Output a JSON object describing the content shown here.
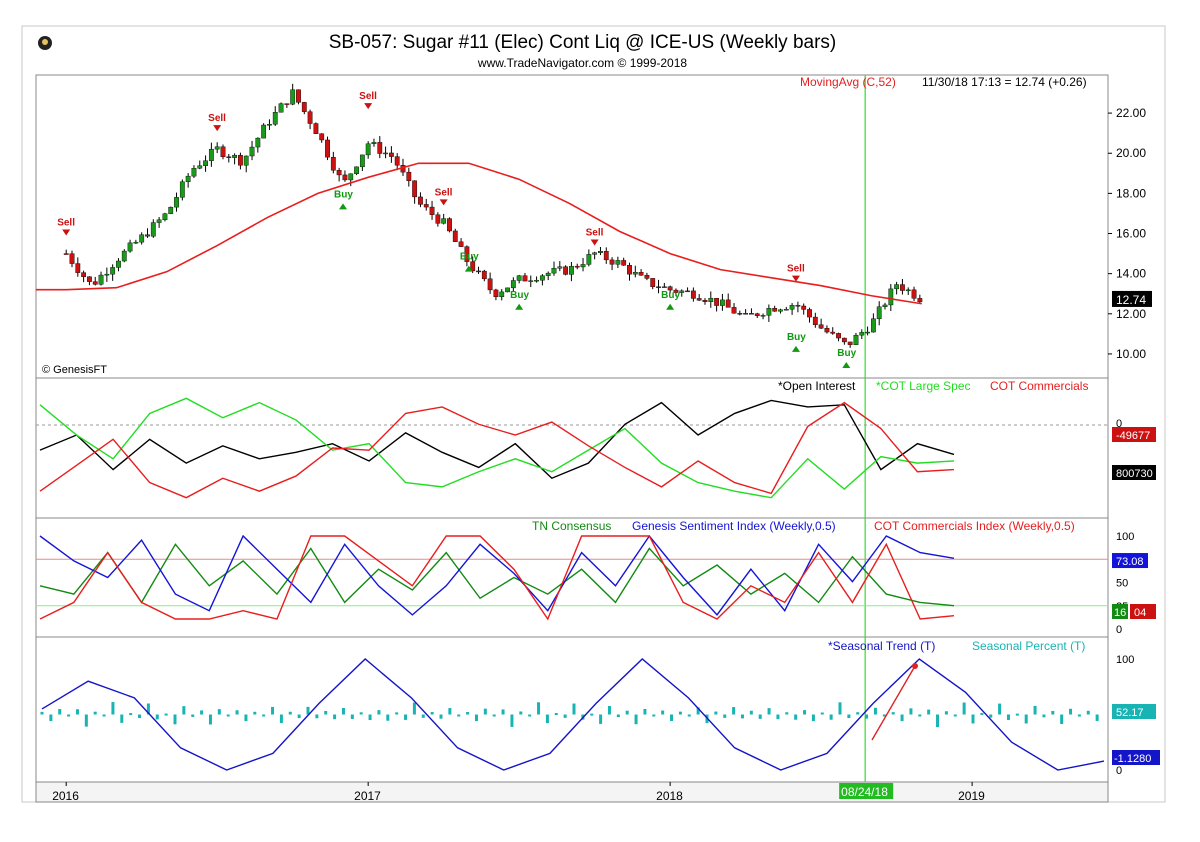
{
  "header": {
    "title": "SB-057:  Sugar #11 (Elec) Cont Liq @ ICE-US  (Weekly bars)",
    "subtitle": "www.TradeNavigator.com © 1999-2018",
    "logo_icon": "genesis-logo-icon",
    "copyright": "© GenesisFT"
  },
  "colors": {
    "background": "#ffffff",
    "frame": "#c8c8c8",
    "up_candle": "#1a9a1a",
    "down_candle": "#cc1111",
    "moving_avg": "#e81e1e",
    "cursor_line": "#33dd33",
    "open_interest": "#000000",
    "cot_large_spec": "#22dd22",
    "cot_commercials": "#e81e1e",
    "tn_consensus": "#138a13",
    "genesis_sentiment": "#1414d8",
    "seasonal_trend": "#1414c8",
    "seasonal_percent": "#18b4b4"
  },
  "x_axis": {
    "labels": [
      "2016",
      "2017",
      "2018",
      "2019"
    ],
    "cursor_date": "08/24/18"
  },
  "chart_data": [
    {
      "type": "candlestick",
      "panel": "price",
      "legend": "MovingAvg (C,52)",
      "readout": "11/30/18 17:13 = 12.74 (+0.26)",
      "last_value": "12.74",
      "ylim": [
        9.0,
        23.5
      ],
      "y_ticks": [
        "22.00",
        "20.00",
        "18.00",
        "16.00",
        "14.00",
        "12.00",
        "10.00"
      ],
      "series": [
        {
          "name": "Sugar #11 weekly close",
          "x": [
            "2016-01",
            "2016-02",
            "2016-03",
            "2016-04",
            "2016-05",
            "2016-06",
            "2016-07",
            "2016-08",
            "2016-09",
            "2016-10",
            "2016-11",
            "2016-12",
            "2017-01",
            "2017-02",
            "2017-03",
            "2017-04",
            "2017-05",
            "2017-06",
            "2017-07",
            "2017-08",
            "2017-09",
            "2017-10",
            "2017-11",
            "2017-12",
            "2018-01",
            "2018-02",
            "2018-03",
            "2018-04",
            "2018-05",
            "2018-06",
            "2018-07",
            "2018-08",
            "2018-09",
            "2018-10",
            "2018-11"
          ],
          "values": [
            15.0,
            13.4,
            14.7,
            15.8,
            17.0,
            19.2,
            20.2,
            19.6,
            21.5,
            23.0,
            21.0,
            18.4,
            20.5,
            19.8,
            17.5,
            16.5,
            14.5,
            13.0,
            13.7,
            14.0,
            14.2,
            15.0,
            14.5,
            13.6,
            13.2,
            13.0,
            12.5,
            11.8,
            12.3,
            12.5,
            11.3,
            10.4,
            11.5,
            13.5,
            12.74
          ]
        },
        {
          "name": "MovingAvg (C,52)",
          "x": [
            "2016-01",
            "2016-03",
            "2016-05",
            "2016-07",
            "2016-09",
            "2016-11",
            "2017-01",
            "2017-03",
            "2017-05",
            "2017-07",
            "2017-09",
            "2017-11",
            "2018-01",
            "2018-03",
            "2018-05",
            "2018-07",
            "2018-09",
            "2018-11"
          ],
          "values": [
            13.2,
            13.3,
            14.1,
            15.4,
            16.8,
            18.0,
            18.8,
            19.5,
            19.5,
            18.7,
            17.5,
            16.1,
            15.0,
            14.2,
            13.8,
            13.4,
            12.9,
            12.5
          ]
        }
      ],
      "annotations": [
        {
          "label": "Sell",
          "x": "2016-01",
          "y": 16.0
        },
        {
          "label": "Sell",
          "x": "2016-07",
          "y": 21.2
        },
        {
          "label": "Sell",
          "x": "2017-01",
          "y": 22.3
        },
        {
          "label": "Sell",
          "x": "2017-04",
          "y": 17.5
        },
        {
          "label": "Sell",
          "x": "2017-10",
          "y": 15.5
        },
        {
          "label": "Sell",
          "x": "2018-06",
          "y": 13.7
        },
        {
          "label": "Buy",
          "x": "2016-12",
          "y": 17.4
        },
        {
          "label": "Buy",
          "x": "2017-05",
          "y": 14.3
        },
        {
          "label": "Buy",
          "x": "2017-07",
          "y": 12.4
        },
        {
          "label": "Buy",
          "x": "2018-01",
          "y": 12.4
        },
        {
          "label": "Buy",
          "x": "2018-06",
          "y": 10.3
        },
        {
          "label": "Buy",
          "x": "2018-08",
          "y": 9.5
        }
      ]
    },
    {
      "type": "line",
      "panel": "cot",
      "y_ticks": [
        "0"
      ],
      "readouts": [
        "-49677",
        "800730"
      ],
      "series": [
        {
          "name": "*Open Interest",
          "values": [
            48,
            62,
            30,
            58,
            36,
            52,
            40,
            46,
            54,
            38,
            64,
            46,
            32,
            54,
            22,
            36,
            72,
            92,
            62,
            82,
            94,
            88,
            90,
            30,
            54,
            44
          ]
        },
        {
          "name": "*COT Large Spec",
          "values": [
            90,
            62,
            40,
            82,
            96,
            78,
            92,
            76,
            48,
            54,
            18,
            14,
            28,
            40,
            28,
            48,
            68,
            36,
            18,
            10,
            4,
            40,
            12,
            42,
            36,
            38
          ]
        },
        {
          "name": "COT Commercials",
          "values": [
            10,
            34,
            58,
            18,
            4,
            22,
            10,
            24,
            50,
            48,
            82,
            88,
            72,
            62,
            74,
            52,
            32,
            14,
            38,
            18,
            8,
            70,
            92,
            68,
            28,
            30
          ]
        }
      ]
    },
    {
      "type": "line",
      "panel": "sentiment",
      "ylim": [
        0,
        100
      ],
      "y_ticks": [
        "100",
        "50",
        "25",
        "0"
      ],
      "readouts": [
        "73.08",
        "16",
        "04"
      ],
      "series": [
        {
          "name": "TN Consensus",
          "values": [
            40,
            30,
            80,
            20,
            90,
            40,
            70,
            30,
            85,
            20,
            60,
            35,
            80,
            25,
            50,
            30,
            60,
            20,
            85,
            40,
            65,
            30,
            55,
            20,
            75,
            30,
            20,
            16
          ]
        },
        {
          "name": "Genesis Sentiment Index (Weekly,0.5)",
          "values": [
            100,
            70,
            50,
            95,
            30,
            10,
            100,
            60,
            20,
            90,
            40,
            5,
            40,
            90,
            55,
            10,
            80,
            40,
            100,
            50,
            5,
            60,
            10,
            90,
            45,
            100,
            80,
            73.08
          ]
        },
        {
          "name": "COT Commercials Index (Weekly,0.5)",
          "values": [
            0,
            20,
            80,
            20,
            0,
            0,
            10,
            0,
            100,
            100,
            70,
            40,
            100,
            100,
            60,
            0,
            100,
            100,
            100,
            20,
            0,
            40,
            20,
            80,
            20,
            90,
            0,
            4
          ]
        }
      ],
      "reference_lines": [
        {
          "name": "upper",
          "value": 75
        },
        {
          "name": "lower",
          "value": 25
        }
      ]
    },
    {
      "type": "line",
      "panel": "seasonal",
      "ylim": [
        0,
        100
      ],
      "y_ticks": [
        "100",
        "0"
      ],
      "readouts": [
        "52.17",
        "-1.1280"
      ],
      "series": [
        {
          "name": "*Seasonal Trend (T)",
          "values": [
            55,
            80,
            65,
            20,
            0,
            15,
            60,
            100,
            65,
            20,
            0,
            15,
            60,
            100,
            65,
            20,
            0,
            15,
            60,
            100,
            70,
            25,
            0,
            8
          ]
        },
        {
          "name": "Seasonal Percent (T)",
          "values": [
            2,
            -3,
            5,
            -4,
            3,
            -6,
            4,
            -2,
            6,
            -5,
            3,
            -3,
            5,
            -4,
            2,
            -6,
            4,
            -3,
            6,
            -5,
            3,
            -2,
            4,
            -3
          ]
        }
      ]
    }
  ]
}
